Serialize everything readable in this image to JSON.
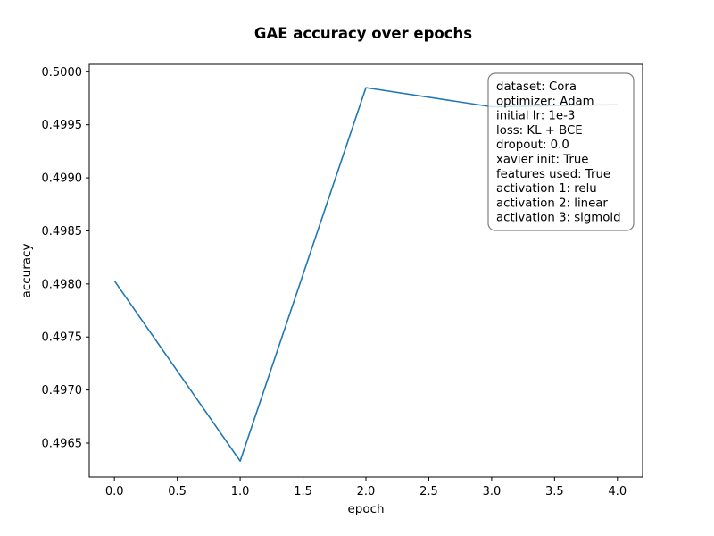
{
  "chart_data": {
    "type": "line",
    "title": "GAE accuracy over epochs",
    "xlabel": "epoch",
    "ylabel": "accuracy",
    "xlim": [
      -0.2,
      4.2
    ],
    "ylim": [
      0.49618,
      0.50007
    ],
    "x_ticks": [
      0.0,
      0.5,
      1.0,
      1.5,
      2.0,
      2.5,
      3.0,
      3.5,
      4.0
    ],
    "x_tick_labels": [
      "0.0",
      "0.5",
      "1.0",
      "1.5",
      "2.0",
      "2.5",
      "3.0",
      "3.5",
      "4.0"
    ],
    "y_ticks": [
      0.4965,
      0.497,
      0.4975,
      0.498,
      0.4985,
      0.499,
      0.4995,
      0.5
    ],
    "y_tick_labels": [
      "0.4965",
      "0.4970",
      "0.4975",
      "0.4980",
      "0.4985",
      "0.4990",
      "0.4995",
      "0.5000"
    ],
    "grid": false,
    "series": [
      {
        "x": [
          0,
          1,
          2,
          3,
          4
        ],
        "values": [
          0.49803,
          0.49633,
          0.49985,
          0.49967,
          0.49969
        ],
        "color": "#1f77b4"
      }
    ],
    "annotation": {
      "position": "top-right",
      "lines": [
        "dataset: Cora",
        "optimizer: Adam",
        "initial lr: 1e-3",
        "loss: KL + BCE",
        "dropout: 0.0",
        "xavier init: True",
        "features used: True",
        "activation 1: relu",
        "activation 2: linear",
        "activation 3: sigmoid"
      ]
    }
  }
}
